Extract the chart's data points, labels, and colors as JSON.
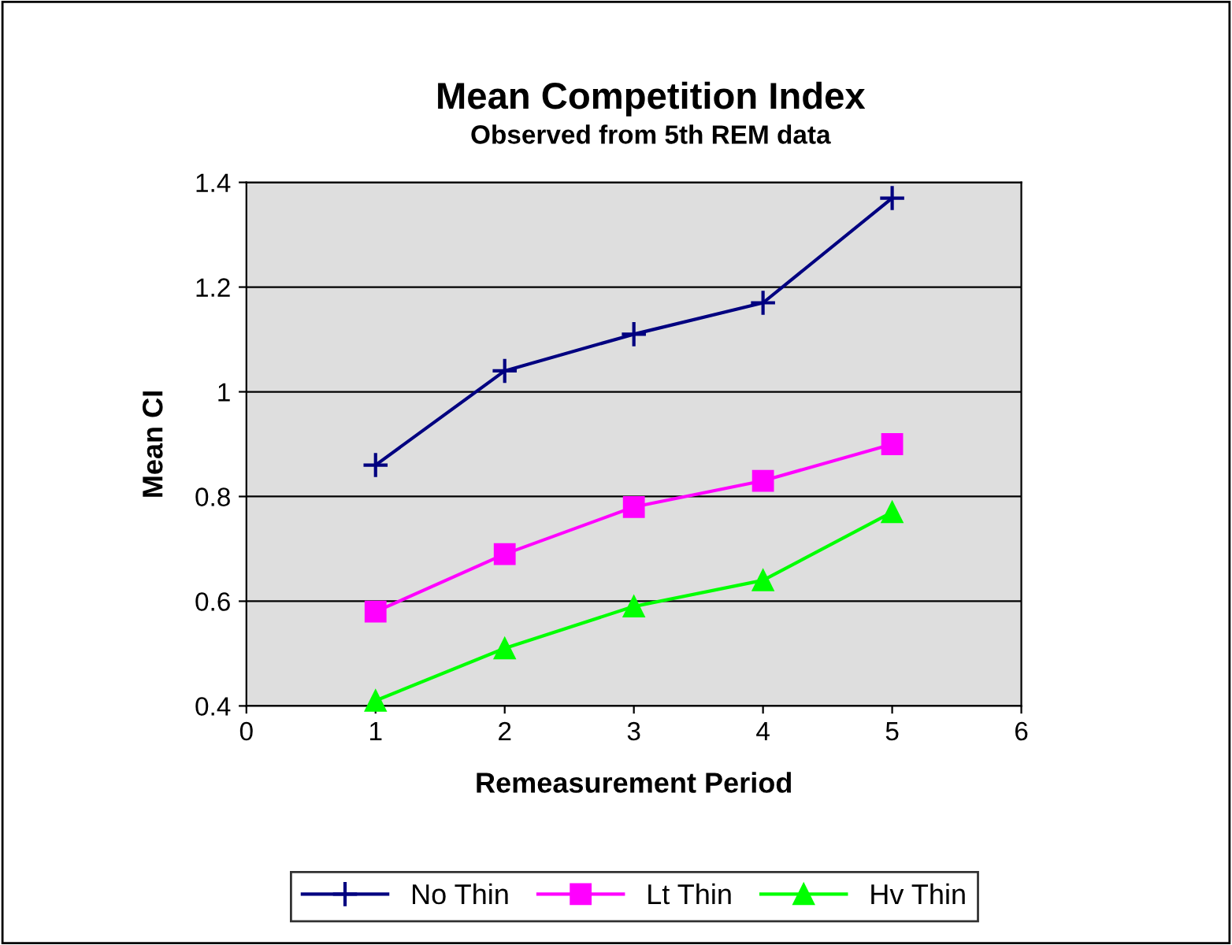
{
  "chart_data": {
    "type": "line",
    "title": "Mean Competition Index",
    "subtitle": "Observed from 5th REM data",
    "xlabel": "Remeasurement Period",
    "ylabel": "Mean CI",
    "x": [
      1,
      2,
      3,
      4,
      5
    ],
    "series": [
      {
        "name": "No Thin",
        "color": "#000080",
        "marker": "cross",
        "values": [
          0.86,
          1.04,
          1.11,
          1.17,
          1.37
        ]
      },
      {
        "name": "Lt Thin",
        "color": "#ff00ff",
        "marker": "square",
        "values": [
          0.58,
          0.69,
          0.78,
          0.83,
          0.9
        ]
      },
      {
        "name": "Hv Thin",
        "color": "#00ff00",
        "marker": "triangle",
        "values": [
          0.41,
          0.51,
          0.59,
          0.64,
          0.77
        ]
      }
    ],
    "xlim": [
      0,
      6
    ],
    "xticks": [
      0,
      1,
      2,
      3,
      4,
      5,
      6
    ],
    "ylim": [
      0.4,
      1.4
    ],
    "yticks": [
      0.4,
      0.6,
      0.8,
      1,
      1.2,
      1.4
    ],
    "grid": "y",
    "legend": "bottom",
    "line_style": "solid"
  }
}
